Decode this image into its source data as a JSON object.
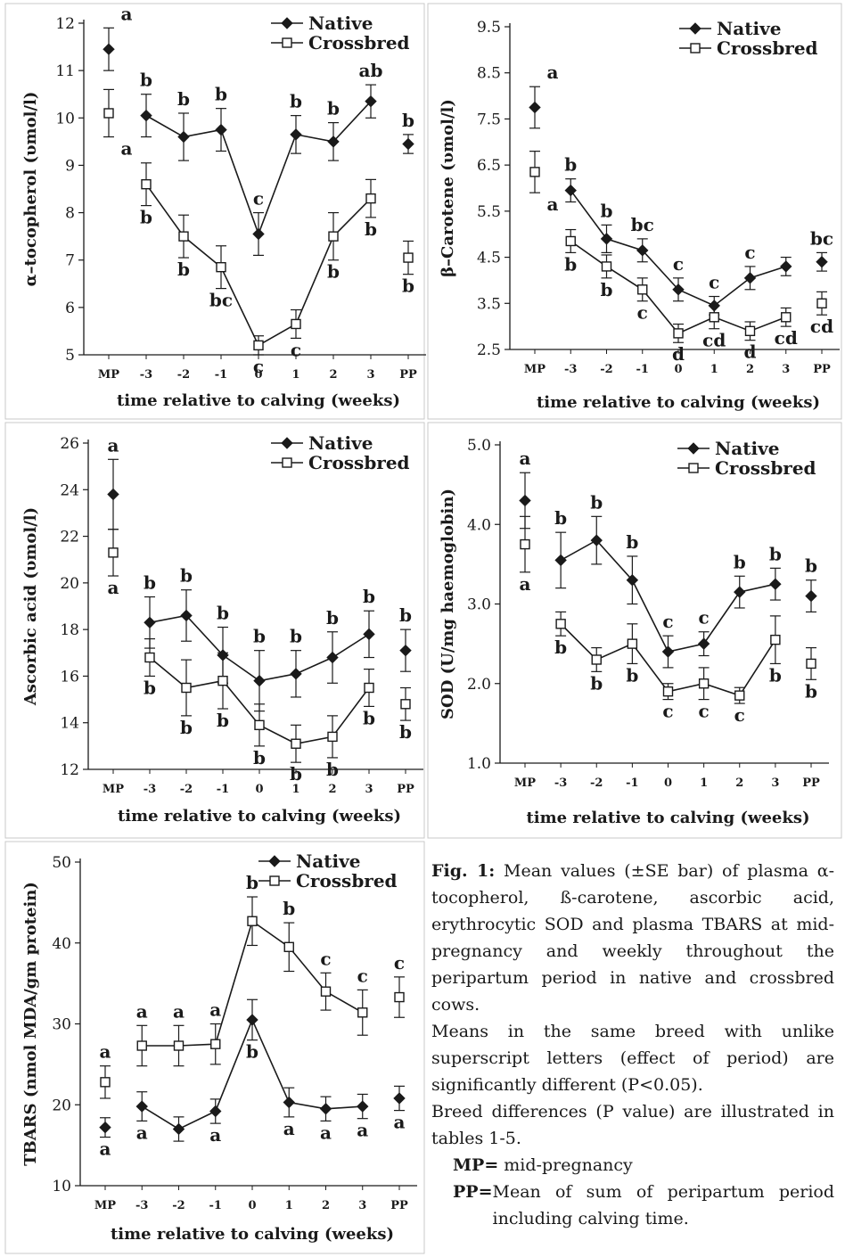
{
  "chart_data": [
    {
      "type": "line",
      "ylabel": "α–tocopherol (υmol/l)",
      "xlabel": "time relative to calving (weeks)",
      "categories": [
        "MP",
        "-3",
        "-2",
        "-1",
        "0",
        "1",
        "2",
        "3",
        "PP"
      ],
      "ylim": [
        5,
        12
      ],
      "yticks": [
        "5",
        "6",
        "7",
        "8",
        "9",
        "10",
        "11",
        "12"
      ],
      "ytick_values": [
        5,
        6,
        7,
        8,
        9,
        10,
        11,
        12
      ],
      "series": [
        {
          "name": "Native",
          "marker": "diamond",
          "values": [
            11.45,
            10.05,
            9.6,
            9.75,
            7.55,
            9.65,
            9.5,
            10.35,
            9.45
          ],
          "err": [
            0.45,
            0.45,
            0.5,
            0.45,
            0.45,
            0.4,
            0.4,
            0.35,
            0.2
          ],
          "letters": [
            "a",
            "b",
            "b",
            "b",
            "c",
            "b",
            "b",
            "ab",
            "b"
          ]
        },
        {
          "name": "Crossbred",
          "marker": "square",
          "values": [
            10.1,
            8.6,
            7.5,
            6.85,
            5.2,
            5.65,
            7.5,
            8.3,
            7.05
          ],
          "err": [
            0.5,
            0.45,
            0.45,
            0.45,
            0.2,
            0.3,
            0.5,
            0.4,
            0.35
          ],
          "letters": [
            "a",
            "b",
            "b",
            "bc",
            "c",
            "c",
            "b",
            "b",
            "b"
          ]
        }
      ]
    },
    {
      "type": "line",
      "ylabel": "β–Carotene (υmol/l)",
      "xlabel": "time relative to calving (weeks)",
      "categories": [
        "MP",
        "-3",
        "-2",
        "-1",
        "0",
        "1",
        "2",
        "3",
        "PP"
      ],
      "ylim": [
        2.5,
        9.5
      ],
      "yticks": [
        "2.5",
        "3.5",
        "4.5",
        "5.5",
        "6.5",
        "7.5",
        "8.5",
        "9.5"
      ],
      "ytick_values": [
        2.5,
        3.5,
        4.5,
        5.5,
        6.5,
        7.5,
        8.5,
        9.5
      ],
      "series": [
        {
          "name": "Native",
          "marker": "diamond",
          "values": [
            7.75,
            5.95,
            4.9,
            4.65,
            3.8,
            3.45,
            4.05,
            4.3,
            4.4
          ],
          "err": [
            0.45,
            0.25,
            0.3,
            0.25,
            0.25,
            0.2,
            0.25,
            0.2,
            0.2
          ],
          "letters": [
            "a",
            "b",
            "b",
            "bc",
            "c",
            "c",
            "c",
            "",
            "bc"
          ]
        },
        {
          "name": "Crossbred",
          "marker": "square",
          "values": [
            6.35,
            4.85,
            4.3,
            3.8,
            2.85,
            3.2,
            2.9,
            3.2,
            3.5
          ],
          "err": [
            0.45,
            0.25,
            0.25,
            0.25,
            0.2,
            0.25,
            0.2,
            0.2,
            0.25
          ],
          "letters": [
            "a",
            "b",
            "b",
            "c",
            "d",
            "cd",
            "d",
            "cd",
            "cd"
          ]
        }
      ]
    },
    {
      "type": "line",
      "ylabel": "Ascorbic acid (υmol/l)",
      "xlabel": "time relative to calving (weeks)",
      "categories": [
        "MP",
        "-3",
        "-2",
        "-1",
        "0",
        "1",
        "2",
        "3",
        "PP"
      ],
      "ylim": [
        12,
        26
      ],
      "yticks": [
        "12",
        "14",
        "16",
        "18",
        "20",
        "22",
        "24",
        "26"
      ],
      "ytick_values": [
        12,
        14,
        16,
        18,
        20,
        22,
        24,
        26
      ],
      "series": [
        {
          "name": "Native",
          "marker": "diamond",
          "values": [
            23.8,
            18.3,
            18.6,
            16.9,
            15.8,
            16.1,
            16.8,
            17.8,
            17.1
          ],
          "err": [
            1.5,
            1.1,
            1.1,
            1.2,
            1.3,
            1.0,
            1.1,
            1.0,
            0.9
          ],
          "letters": [
            "a",
            "b",
            "b",
            "b",
            "b",
            "b",
            "b",
            "b",
            "b"
          ]
        },
        {
          "name": "Crossbred",
          "marker": "square",
          "values": [
            21.3,
            16.8,
            15.5,
            15.8,
            13.9,
            13.1,
            13.4,
            15.5,
            14.8
          ],
          "err": [
            1.0,
            0.8,
            1.2,
            1.2,
            0.9,
            0.8,
            0.9,
            0.8,
            0.7
          ],
          "letters": [
            "a",
            "b",
            "b",
            "b",
            "b",
            "b",
            "b",
            "b",
            "b"
          ]
        }
      ]
    },
    {
      "type": "line",
      "ylabel": "SOD  (U/mg haemoglobin)",
      "xlabel": "time relative to calving (weeks)",
      "categories": [
        "MP",
        "-3",
        "-2",
        "-1",
        "0",
        "1",
        "2",
        "3",
        "PP"
      ],
      "ylim": [
        1.0,
        5.0
      ],
      "yticks": [
        "1.0",
        "2.0",
        "3.0",
        "4.0",
        "5.0"
      ],
      "ytick_values": [
        1.0,
        2.0,
        3.0,
        4.0,
        5.0
      ],
      "series": [
        {
          "name": "Native",
          "marker": "diamond",
          "values": [
            4.3,
            3.55,
            3.8,
            3.3,
            2.4,
            2.5,
            3.15,
            3.25,
            3.1
          ],
          "err": [
            0.35,
            0.35,
            0.3,
            0.3,
            0.2,
            0.15,
            0.2,
            0.2,
            0.2
          ],
          "letters": [
            "a",
            "b",
            "b",
            "b",
            "c",
            "c",
            "b",
            "b",
            "b"
          ]
        },
        {
          "name": "Crossbred",
          "marker": "square",
          "values": [
            3.75,
            2.75,
            2.3,
            2.5,
            1.9,
            2.0,
            1.85,
            2.55,
            2.25
          ],
          "err": [
            0.35,
            0.15,
            0.15,
            0.25,
            0.1,
            0.2,
            0.1,
            0.3,
            0.2
          ],
          "letters": [
            "a",
            "b",
            "b",
            "b",
            "c",
            "c",
            "c",
            "b",
            "b"
          ]
        }
      ]
    },
    {
      "type": "line",
      "ylabel": "TBARS (nmol MDA/gm protein)",
      "xlabel": "time relative to calving (weeks)",
      "categories": [
        "MP",
        "-3",
        "-2",
        "-1",
        "0",
        "1",
        "2",
        "3",
        "PP"
      ],
      "ylim": [
        10,
        50
      ],
      "yticks": [
        "10",
        "20",
        "30",
        "40",
        "50"
      ],
      "ytick_values": [
        10,
        20,
        30,
        40,
        50
      ],
      "series": [
        {
          "name": "Native",
          "marker": "diamond",
          "values": [
            17.2,
            19.8,
            17.0,
            19.2,
            30.5,
            20.3,
            19.5,
            19.8,
            20.8
          ],
          "err": [
            1.2,
            1.8,
            1.5,
            1.5,
            2.5,
            1.8,
            1.5,
            1.5,
            1.5
          ],
          "letters": [
            "a",
            "a",
            "",
            "a",
            "b",
            "a",
            "a",
            "a",
            "a"
          ]
        },
        {
          "name": "Crossbred",
          "marker": "square",
          "values": [
            22.8,
            27.3,
            27.3,
            27.5,
            42.7,
            39.5,
            34.0,
            31.4,
            33.3
          ],
          "err": [
            2.0,
            2.5,
            2.5,
            2.5,
            3.0,
            3.0,
            2.3,
            2.8,
            2.5
          ],
          "letters": [
            "a",
            "a",
            "a",
            "a",
            "b",
            "b",
            "c",
            "c",
            "c"
          ]
        }
      ]
    }
  ],
  "caption": {
    "fig_label": "Fig. 1:",
    "text": "Mean values (±SE bar) of plasma α-tocopherol, ß-carotene, ascorbic acid, erythrocytic SOD and plasma TBARS at mid-pregnancy and weekly throughout the peripartum period in native and crossbred cows.",
    "note1": "Means in the same breed with unlike superscript letters (effect of period) are significantly different (P<0.05).",
    "note2": "Breed differences (P value) are illustrated in tables 1-5.",
    "mp_abbr": "MP=",
    "mp_text": " mid-pregnancy",
    "pp_abbr": "PP=",
    "pp_text": " Mean of sum of peripartum period including calving time."
  }
}
